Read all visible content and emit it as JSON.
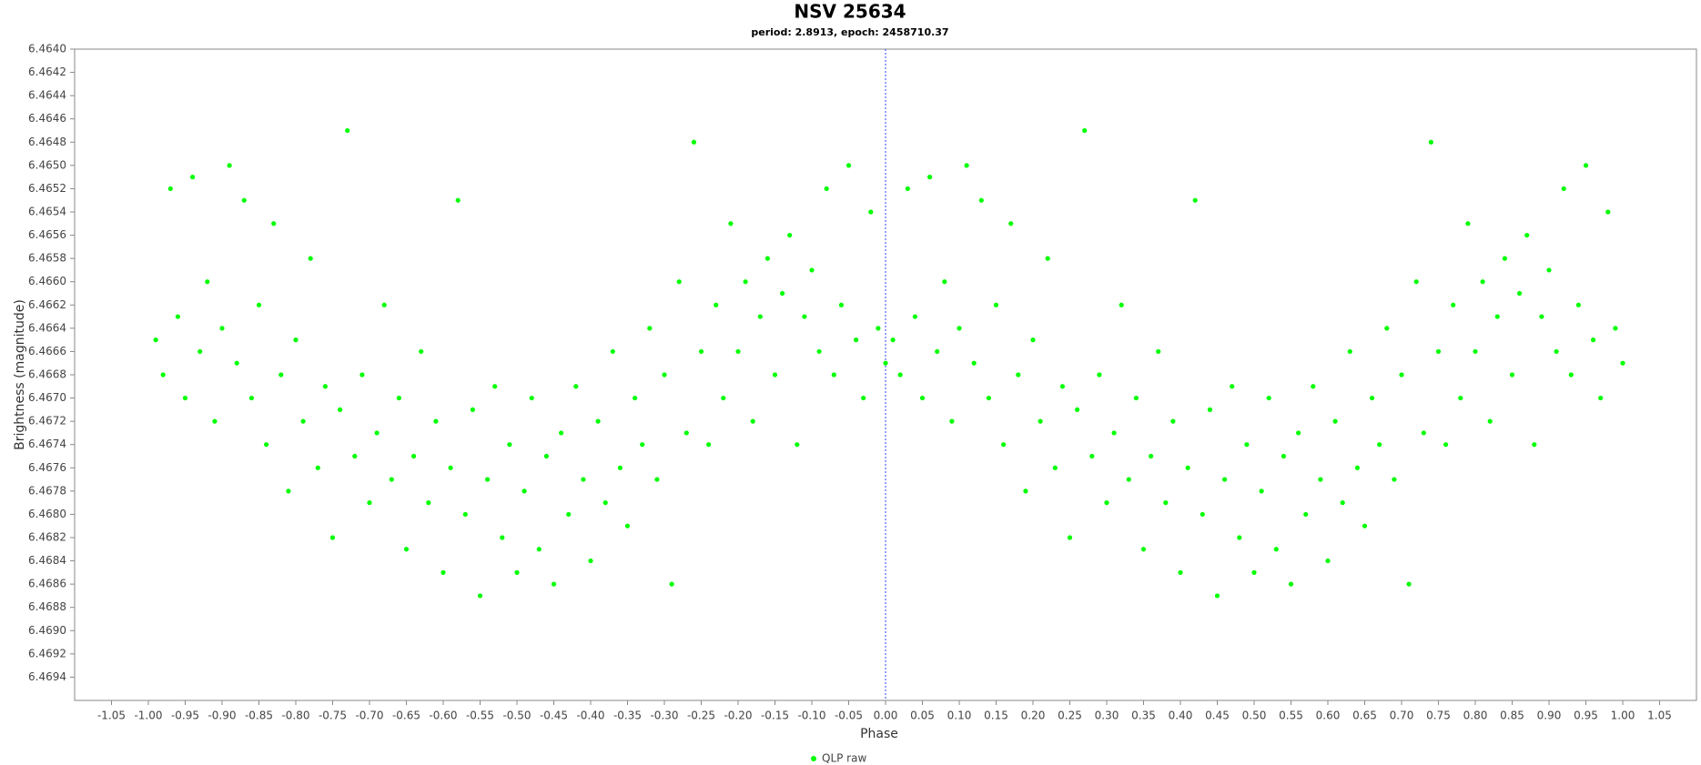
{
  "chart_data": {
    "type": "scatter",
    "title": "NSV 25634",
    "subtitle": "period: 2.8913, epoch: 2458710.37",
    "x_label": "Phase",
    "y_label": "Brightness (magnitude)",
    "xlim": [
      -1.1,
      1.1
    ],
    "ylim": [
      6.4696,
      6.464
    ],
    "y_inverted": true,
    "grid": false,
    "xticks": [
      -1.05,
      {
        "value": -1.0,
        "label": "-1.00"
      },
      -0.95,
      {
        "value": -0.9,
        "label": "-0.90"
      },
      -0.85,
      {
        "value": -0.8,
        "label": "-0.80"
      },
      -0.75,
      {
        "value": -0.7,
        "label": "-0.70"
      },
      -0.65,
      {
        "value": -0.6,
        "label": "-0.60"
      },
      -0.55,
      {
        "value": -0.5,
        "label": "-0.50"
      },
      -0.45,
      {
        "value": -0.4,
        "label": "-0.40"
      },
      -0.35,
      {
        "value": -0.3,
        "label": "-0.30"
      },
      -0.25,
      {
        "value": -0.2,
        "label": "-0.20"
      },
      -0.15,
      {
        "value": -0.1,
        "label": "-0.10"
      },
      -0.05,
      {
        "value": 0,
        "label": "0.00"
      },
      0.05,
      {
        "value": 0.1,
        "label": "0.10"
      },
      0.15,
      {
        "value": 0.2,
        "label": "0.20"
      },
      0.25,
      {
        "value": 0.3,
        "label": "0.30"
      },
      0.35,
      {
        "value": 0.4,
        "label": "0.40"
      },
      0.45,
      {
        "value": 0.5,
        "label": "0.50"
      },
      0.55,
      {
        "value": 0.6,
        "label": "0.60"
      },
      0.65,
      {
        "value": 0.7,
        "label": "0.70"
      },
      0.75,
      {
        "value": 0.8,
        "label": "0.80"
      },
      0.85,
      {
        "value": 0.9,
        "label": "0.90"
      },
      0.95,
      {
        "value": 1.0,
        "label": "1.00"
      },
      1.05
    ],
    "yticks": [
      {
        "value": 6.464,
        "label": "6.4640"
      },
      6.4642,
      6.4644,
      6.4646,
      6.4648,
      {
        "value": 6.465,
        "label": "6.4650"
      },
      6.4652,
      6.4654,
      6.4656,
      6.4658,
      {
        "value": 6.466,
        "label": "6.4660"
      },
      6.4662,
      6.4664,
      6.4666,
      6.4668,
      {
        "value": 6.467,
        "label": "6.4670"
      },
      6.4672,
      6.4674,
      6.4676,
      6.4678,
      {
        "value": 6.468,
        "label": "6.4680"
      },
      6.4682,
      6.4684,
      6.4686,
      6.4688,
      {
        "value": 6.469,
        "label": "6.4690"
      },
      6.4692,
      6.4694
    ],
    "series": [
      {
        "name": "QLP raw",
        "color": "#00ff00",
        "x": [
          -0.99,
          -0.98,
          -0.97,
          -0.96,
          -0.95,
          -0.94,
          -0.93,
          -0.92,
          -0.91,
          -0.9,
          -0.89,
          -0.88,
          -0.87,
          -0.86,
          -0.85,
          -0.84,
          -0.83,
          -0.82,
          -0.81,
          -0.8,
          -0.79,
          -0.78,
          -0.77,
          -0.76,
          -0.75,
          -0.74,
          -0.73,
          -0.72,
          -0.71,
          -0.7,
          -0.69,
          -0.68,
          -0.67,
          -0.66,
          -0.65,
          -0.64,
          -0.63,
          -0.62,
          -0.61,
          -0.6,
          -0.59,
          -0.58,
          -0.57,
          -0.56,
          -0.55,
          -0.54,
          -0.53,
          -0.52,
          -0.51,
          -0.5,
          -0.49,
          -0.48,
          -0.47,
          -0.46,
          -0.45,
          -0.44,
          -0.43,
          -0.42,
          -0.41,
          -0.4,
          -0.39,
          -0.38,
          -0.37,
          -0.36,
          -0.35,
          -0.34,
          -0.33,
          -0.32,
          -0.31,
          -0.3,
          -0.29,
          -0.28,
          -0.27,
          -0.26,
          -0.25,
          -0.24,
          -0.23,
          -0.22,
          -0.21,
          -0.2,
          -0.19,
          -0.18,
          -0.17,
          -0.16,
          -0.15,
          -0.14,
          -0.13,
          -0.12,
          -0.11,
          -0.1,
          -0.09,
          -0.08,
          -0.07,
          -0.06,
          -0.05,
          -0.04,
          -0.03,
          -0.02,
          -0.01,
          0,
          0.01,
          0.02,
          0.03,
          0.04,
          0.05,
          0.06,
          0.07,
          0.08,
          0.09,
          0.1,
          0.11,
          0.12,
          0.13,
          0.14,
          0.15,
          0.16,
          0.17,
          0.18,
          0.19,
          0.2,
          0.21,
          0.22,
          0.23,
          0.24,
          0.25,
          0.26,
          0.27,
          0.28,
          0.29,
          0.3,
          0.31,
          0.32,
          0.33,
          0.34,
          0.35,
          0.36,
          0.37,
          0.38,
          0.39,
          0.4,
          0.41,
          0.42,
          0.43,
          0.44,
          0.45,
          0.46,
          0.47,
          0.48,
          0.49,
          0.5,
          0.51,
          0.52,
          0.53,
          0.54,
          0.55,
          0.56,
          0.57,
          0.58,
          0.59,
          0.6,
          0.61,
          0.62,
          0.63,
          0.64,
          0.65,
          0.66,
          0.67,
          0.68,
          0.69,
          0.7,
          0.71,
          0.72,
          0.73,
          0.74,
          0.75,
          0.76,
          0.77,
          0.78,
          0.79,
          0.8,
          0.81,
          0.82,
          0.83,
          0.84,
          0.85,
          0.86,
          0.87,
          0.88,
          0.89,
          0.9,
          0.91,
          0.92,
          0.93,
          0.94,
          0.95,
          0.96,
          0.97,
          0.98,
          0.99,
          1.0
        ],
        "values": [
          6.4665,
          6.4668,
          6.4652,
          6.4663,
          6.467,
          6.4651,
          6.4666,
          6.466,
          6.4672,
          6.4664,
          6.465,
          6.4667,
          6.4653,
          6.467,
          6.4662,
          6.4674,
          6.4655,
          6.4668,
          6.4678,
          6.4665,
          6.4672,
          6.4658,
          6.4676,
          6.4669,
          6.4682,
          6.4671,
          6.4647,
          6.4675,
          6.4668,
          6.4679,
          6.4673,
          6.4662,
          6.4677,
          6.467,
          6.4683,
          6.4675,
          6.4666,
          6.4679,
          6.4672,
          6.4685,
          6.4676,
          6.4653,
          6.468,
          6.4671,
          6.4687,
          6.4677,
          6.4669,
          6.4682,
          6.4674,
          6.4685,
          6.4678,
          6.467,
          6.4683,
          6.4675,
          6.4686,
          6.4673,
          6.468,
          6.4669,
          6.4677,
          6.4684,
          6.4672,
          6.4679,
          6.4666,
          6.4676,
          6.4681,
          6.467,
          6.4674,
          6.4664,
          6.4677,
          6.4668,
          6.4686,
          6.466,
          6.4673,
          6.4648,
          6.4666,
          6.4674,
          6.4662,
          6.467,
          6.4655,
          6.4666,
          6.466,
          6.4672,
          6.4663,
          6.4658,
          6.4668,
          6.4661,
          6.4656,
          6.4674,
          6.4663,
          6.4659,
          6.4666,
          6.4652,
          6.4668,
          6.4662,
          6.465,
          6.4665,
          6.467,
          6.4654,
          6.4664,
          6.4667,
          6.4665,
          6.4668,
          6.4652,
          6.4663,
          6.467,
          6.4651,
          6.4666,
          6.466,
          6.4672,
          6.4664,
          6.465,
          6.4667,
          6.4653,
          6.467,
          6.4662,
          6.4674,
          6.4655,
          6.4668,
          6.4678,
          6.4665,
          6.4672,
          6.4658,
          6.4676,
          6.4669,
          6.4682,
          6.4671,
          6.4647,
          6.4675,
          6.4668,
          6.4679,
          6.4673,
          6.4662,
          6.4677,
          6.467,
          6.4683,
          6.4675,
          6.4666,
          6.4679,
          6.4672,
          6.4685,
          6.4676,
          6.4653,
          6.468,
          6.4671,
          6.4687,
          6.4677,
          6.4669,
          6.4682,
          6.4674,
          6.4685,
          6.4678,
          6.467,
          6.4683,
          6.4675,
          6.4686,
          6.4673,
          6.468,
          6.4669,
          6.4677,
          6.4684,
          6.4672,
          6.4679,
          6.4666,
          6.4676,
          6.4681,
          6.467,
          6.4674,
          6.4664,
          6.4677,
          6.4668,
          6.4686,
          6.466,
          6.4673,
          6.4648,
          6.4666,
          6.4674,
          6.4662,
          6.467,
          6.4655,
          6.4666,
          6.466,
          6.4672,
          6.4663,
          6.4658,
          6.4668,
          6.4661,
          6.4656,
          6.4674,
          6.4663,
          6.4659,
          6.4666,
          6.4652,
          6.4668,
          6.4662,
          6.465,
          6.4665,
          6.467,
          6.4654,
          6.4664,
          6.4667
        ]
      }
    ]
  }
}
